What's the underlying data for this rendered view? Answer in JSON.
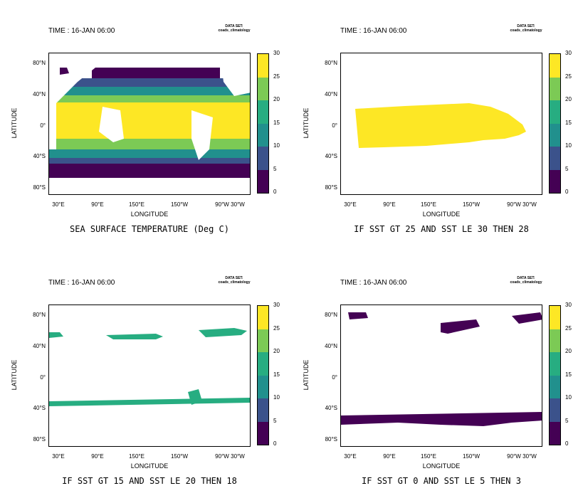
{
  "common": {
    "time_label": "TIME : 16-JAN 06:00",
    "dataset_line1": "DATA SET:",
    "dataset_line2": "coads_climatology",
    "ylabel": "LATITUDE",
    "xlabel": "LONGITUDE",
    "lat_ticks": [
      "80°N",
      "40°N",
      "0°",
      "40°S",
      "80°S"
    ],
    "lon_ticks": [
      "30°E",
      "90°E",
      "150°E",
      "150°W",
      "90°W",
      "30°W"
    ],
    "colorbar": {
      "levels": [
        "0",
        "5",
        "10",
        "15",
        "20",
        "25",
        "30"
      ],
      "colors": [
        "#440154",
        "#3b528b",
        "#21908d",
        "#27ad81",
        "#7cca55",
        "#fde725"
      ]
    }
  },
  "panels": [
    {
      "caption": "SEA SURFACE TEMPERATURE (Deg C)",
      "mode": "full"
    },
    {
      "caption": "IF SST GT 25 AND SST LE 30 THEN 28",
      "mode": "warm"
    },
    {
      "caption": "IF SST GT 15 AND SST LE 20 THEN 18",
      "mode": "mid"
    },
    {
      "caption": "IF SST GT  0 AND SST LE  5 THEN  3",
      "mode": "cold"
    }
  ]
}
